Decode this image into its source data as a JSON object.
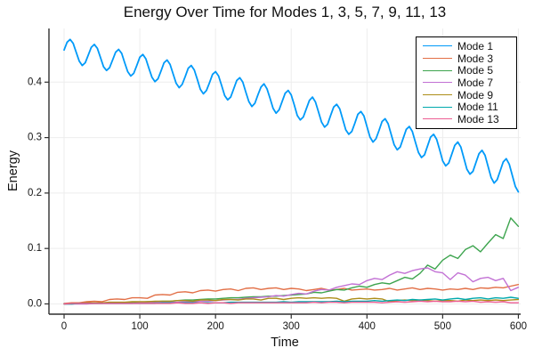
{
  "chart_data": {
    "type": "line",
    "title": "Energy Over Time for Modes 1, 3, 5, 7, 9, 11, 13",
    "xlabel": "Time",
    "ylabel": "Energy",
    "xlim": [
      -20,
      603
    ],
    "ylim": [
      -0.0185,
      0.4968
    ],
    "xticks": [
      0,
      100,
      200,
      300,
      400,
      500,
      600
    ],
    "xtick_labels": [
      "0",
      "100",
      "200",
      "300",
      "400",
      "500",
      "600"
    ],
    "yticks": [
      0.0,
      0.1,
      0.2,
      0.3,
      0.4
    ],
    "ytick_labels": [
      "0.0",
      "0.1",
      "0.2",
      "0.3",
      "0.4"
    ],
    "grid": true,
    "legend_position": "top-right",
    "background_color": "#ffffff",
    "grid_color": "#ededed",
    "axis_color": "#2f2f2f",
    "series": [
      {
        "name": "Mode 1",
        "color": "#009af9",
        "x0": 0,
        "dx": 4,
        "values": [
          0.458,
          0.472,
          0.477,
          0.47,
          0.454,
          0.438,
          0.43,
          0.435,
          0.449,
          0.463,
          0.468,
          0.461,
          0.445,
          0.428,
          0.421,
          0.426,
          0.44,
          0.454,
          0.459,
          0.452,
          0.435,
          0.419,
          0.411,
          0.416,
          0.43,
          0.445,
          0.45,
          0.442,
          0.425,
          0.409,
          0.401,
          0.406,
          0.42,
          0.435,
          0.44,
          0.432,
          0.415,
          0.398,
          0.39,
          0.396,
          0.41,
          0.425,
          0.43,
          0.422,
          0.405,
          0.387,
          0.379,
          0.385,
          0.399,
          0.414,
          0.419,
          0.411,
          0.394,
          0.376,
          0.368,
          0.373,
          0.388,
          0.403,
          0.408,
          0.4,
          0.382,
          0.365,
          0.356,
          0.362,
          0.377,
          0.391,
          0.397,
          0.388,
          0.371,
          0.353,
          0.344,
          0.35,
          0.365,
          0.38,
          0.385,
          0.377,
          0.359,
          0.34,
          0.332,
          0.337,
          0.352,
          0.367,
          0.373,
          0.364,
          0.346,
          0.328,
          0.319,
          0.324,
          0.34,
          0.355,
          0.36,
          0.352,
          0.333,
          0.314,
          0.306,
          0.311,
          0.326,
          0.342,
          0.347,
          0.339,
          0.32,
          0.301,
          0.292,
          0.298,
          0.313,
          0.329,
          0.334,
          0.325,
          0.306,
          0.287,
          0.278,
          0.283,
          0.299,
          0.315,
          0.32,
          0.311,
          0.292,
          0.273,
          0.264,
          0.269,
          0.285,
          0.301,
          0.306,
          0.297,
          0.278,
          0.258,
          0.249,
          0.254,
          0.27,
          0.286,
          0.292,
          0.283,
          0.263,
          0.243,
          0.234,
          0.239,
          0.255,
          0.271,
          0.277,
          0.268,
          0.248,
          0.228,
          0.218,
          0.224,
          0.24,
          0.256,
          0.262,
          0.252,
          0.232,
          0.212,
          0.202
        ]
      },
      {
        "name": "Mode 3",
        "color": "#e26f46",
        "x0": 0,
        "dx": 10,
        "values": [
          0.001,
          0.002,
          0.002,
          0.004,
          0.005,
          0.004,
          0.008,
          0.009,
          0.008,
          0.011,
          0.011,
          0.01,
          0.016,
          0.017,
          0.016,
          0.021,
          0.022,
          0.02,
          0.024,
          0.025,
          0.023,
          0.026,
          0.027,
          0.024,
          0.028,
          0.029,
          0.026,
          0.028,
          0.029,
          0.026,
          0.028,
          0.027,
          0.024,
          0.026,
          0.028,
          0.025,
          0.026,
          0.028,
          0.025,
          0.026,
          0.027,
          0.025,
          0.026,
          0.028,
          0.025,
          0.027,
          0.029,
          0.026,
          0.028,
          0.027,
          0.025,
          0.027,
          0.026,
          0.028,
          0.026,
          0.029,
          0.028,
          0.03,
          0.029,
          0.032,
          0.035
        ]
      },
      {
        "name": "Mode 5",
        "color": "#3da44e",
        "x0": 0,
        "dx": 10,
        "values": [
          0.0,
          0.0,
          0.001,
          0.001,
          0.001,
          0.001,
          0.002,
          0.002,
          0.002,
          0.003,
          0.003,
          0.004,
          0.004,
          0.005,
          0.005,
          0.006,
          0.007,
          0.007,
          0.008,
          0.009,
          0.009,
          0.01,
          0.011,
          0.011,
          0.012,
          0.013,
          0.013,
          0.014,
          0.014,
          0.015,
          0.016,
          0.017,
          0.018,
          0.021,
          0.02,
          0.023,
          0.026,
          0.025,
          0.029,
          0.032,
          0.03,
          0.035,
          0.038,
          0.036,
          0.042,
          0.048,
          0.045,
          0.055,
          0.07,
          0.063,
          0.079,
          0.088,
          0.082,
          0.098,
          0.105,
          0.094,
          0.11,
          0.125,
          0.118,
          0.155,
          0.14
        ]
      },
      {
        "name": "Mode 7",
        "color": "#c271d4",
        "x0": 0,
        "dx": 10,
        "values": [
          0.0,
          0.0,
          0.0,
          0.0,
          0.001,
          0.001,
          0.001,
          0.001,
          0.001,
          0.001,
          0.002,
          0.002,
          0.002,
          0.003,
          0.003,
          0.003,
          0.004,
          0.004,
          0.005,
          0.005,
          0.006,
          0.007,
          0.008,
          0.008,
          0.01,
          0.011,
          0.012,
          0.013,
          0.015,
          0.014,
          0.017,
          0.019,
          0.018,
          0.023,
          0.026,
          0.025,
          0.03,
          0.033,
          0.036,
          0.035,
          0.042,
          0.046,
          0.044,
          0.052,
          0.058,
          0.055,
          0.06,
          0.063,
          0.065,
          0.058,
          0.056,
          0.044,
          0.056,
          0.052,
          0.04,
          0.046,
          0.048,
          0.042,
          0.046,
          0.024,
          0.03
        ]
      },
      {
        "name": "Mode 9",
        "color": "#ac8d18",
        "x0": 0,
        "dx": 10,
        "values": [
          0.0,
          0.001,
          0.001,
          0.002,
          0.002,
          0.002,
          0.003,
          0.003,
          0.003,
          0.004,
          0.004,
          0.004,
          0.005,
          0.005,
          0.005,
          0.006,
          0.006,
          0.005,
          0.007,
          0.007,
          0.006,
          0.008,
          0.008,
          0.007,
          0.009,
          0.009,
          0.007,
          0.01,
          0.01,
          0.008,
          0.01,
          0.011,
          0.01,
          0.011,
          0.01,
          0.011,
          0.01,
          0.005,
          0.009,
          0.01,
          0.009,
          0.01,
          0.009,
          0.004,
          0.006,
          0.007,
          0.006,
          0.007,
          0.006,
          0.005,
          0.006,
          0.006,
          0.005,
          0.007,
          0.006,
          0.007,
          0.006,
          0.007,
          0.006,
          0.007,
          0.008
        ]
      },
      {
        "name": "Mode 11",
        "color": "#00a9ad",
        "x0": 0,
        "dx": 10,
        "values": [
          0.0,
          0.0,
          0.001,
          0.001,
          0.001,
          0.001,
          0.001,
          0.001,
          0.001,
          0.001,
          0.001,
          0.001,
          0.001,
          0.002,
          0.002,
          0.002,
          0.002,
          0.002,
          0.002,
          0.002,
          0.002,
          0.002,
          0.003,
          0.003,
          0.003,
          0.003,
          0.003,
          0.003,
          0.003,
          0.004,
          0.003,
          0.004,
          0.004,
          0.004,
          0.004,
          0.004,
          0.005,
          0.004,
          0.005,
          0.005,
          0.005,
          0.006,
          0.005,
          0.006,
          0.007,
          0.006,
          0.008,
          0.007,
          0.008,
          0.009,
          0.007,
          0.009,
          0.01,
          0.008,
          0.01,
          0.011,
          0.009,
          0.011,
          0.01,
          0.012,
          0.01
        ]
      },
      {
        "name": "Mode 13",
        "color": "#ed5d92",
        "x0": 0,
        "dx": 10,
        "values": [
          0.0,
          0.001,
          0.001,
          0.001,
          0.001,
          0.001,
          0.001,
          0.001,
          0.001,
          0.001,
          0.001,
          0.001,
          0.001,
          0.001,
          0.001,
          0.002,
          0.001,
          0.001,
          0.002,
          0.001,
          0.002,
          0.002,
          0.001,
          0.002,
          0.002,
          0.002,
          0.002,
          0.002,
          0.002,
          0.002,
          0.002,
          0.002,
          0.002,
          0.003,
          0.002,
          0.003,
          0.003,
          0.002,
          0.003,
          0.003,
          0.003,
          0.003,
          0.002,
          0.003,
          0.004,
          0.003,
          0.004,
          0.005,
          0.004,
          0.005,
          0.004,
          0.004,
          0.005,
          0.004,
          0.005,
          0.003,
          0.004,
          0.003,
          0.004,
          0.002,
          0.002
        ]
      }
    ]
  }
}
